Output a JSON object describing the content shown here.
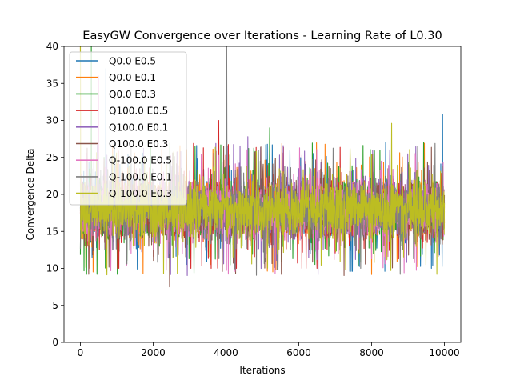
{
  "chart_data": {
    "type": "line",
    "title": "EasyGW Convergence over Iterations - Learning Rate of L0.30",
    "xlabel": "Iterations",
    "ylabel": "Convergence Delta",
    "xlim": [
      -450,
      10450
    ],
    "ylim": [
      0,
      40
    ],
    "xticks": [
      0,
      2000,
      4000,
      6000,
      8000,
      10000
    ],
    "yticks": [
      0,
      5,
      10,
      15,
      20,
      25,
      30,
      35,
      40
    ],
    "grid": false,
    "legend_position": "top-left",
    "series_style": "dense noisy trace, mean about 18, typical range 10 to 26",
    "series": [
      {
        "name": "Q0.0 E0.5",
        "color": "#1f77b4",
        "min": 9.6,
        "max": 37,
        "mean": 18,
        "peaks": [
          [
            700,
            37
          ],
          [
            9950,
            30.8
          ]
        ]
      },
      {
        "name": "Q0.0 E0.1",
        "color": "#ff7f0e",
        "min": 8.8,
        "max": 40,
        "mean": 18,
        "peaks": [
          [
            0,
            40
          ]
        ]
      },
      {
        "name": "Q0.0 E0.3",
        "color": "#2ca02c",
        "min": 9.2,
        "max": 40,
        "mean": 18,
        "peaks": [
          [
            300,
            40
          ],
          [
            5200,
            29
          ]
        ]
      },
      {
        "name": "Q100.0 E0.5",
        "color": "#d62728",
        "min": 10,
        "max": 30,
        "mean": 18,
        "peaks": [
          [
            3800,
            30
          ]
        ]
      },
      {
        "name": "Q100.0 E0.1",
        "color": "#9467bd",
        "min": 8.8,
        "max": 28,
        "mean": 18,
        "peaks": [
          [
            4600,
            27.8
          ]
        ]
      },
      {
        "name": "Q100.0 E0.3",
        "color": "#8c564b",
        "min": 7.5,
        "max": 27,
        "mean": 18,
        "peaks": [
          [
            2450,
            7.5
          ]
        ]
      },
      {
        "name": "Q-100.0 E0.5",
        "color": "#e377c2",
        "min": 8.6,
        "max": 36,
        "mean": 18,
        "peaks": [
          [
            500,
            36
          ]
        ]
      },
      {
        "name": "Q-100.0 E0.1",
        "color": "#7f7f7f",
        "min": 9,
        "max": 40,
        "mean": 18,
        "peaks": [
          [
            4020,
            40
          ]
        ]
      },
      {
        "name": "Q-100.0 E0.3",
        "color": "#bcbd22",
        "min": 8,
        "max": 40,
        "mean": 18,
        "peaks": [
          [
            0,
            40
          ],
          [
            8550,
            29.6
          ]
        ]
      }
    ]
  }
}
